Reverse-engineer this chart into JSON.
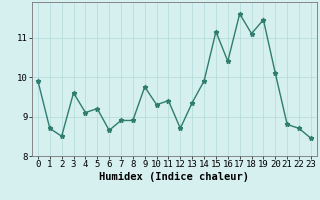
{
  "x": [
    0,
    1,
    2,
    3,
    4,
    5,
    6,
    7,
    8,
    9,
    10,
    11,
    12,
    13,
    14,
    15,
    16,
    17,
    18,
    19,
    20,
    21,
    22,
    23
  ],
  "y": [
    9.9,
    8.7,
    8.5,
    9.6,
    9.1,
    9.2,
    8.65,
    8.9,
    8.9,
    9.75,
    9.3,
    9.4,
    8.7,
    9.35,
    9.9,
    11.15,
    10.4,
    11.6,
    11.1,
    11.45,
    10.1,
    8.8,
    8.7,
    8.45
  ],
  "line_color": "#2e7d6e",
  "bg_color": "#d6efef",
  "grid_color": "#b8dcdc",
  "xlabel": "Humidex (Indice chaleur)",
  "ylim": [
    8.0,
    11.9
  ],
  "xlim": [
    -0.5,
    23.5
  ],
  "yticks": [
    8,
    9,
    10,
    11
  ],
  "xticks": [
    0,
    1,
    2,
    3,
    4,
    5,
    6,
    7,
    8,
    9,
    10,
    11,
    12,
    13,
    14,
    15,
    16,
    17,
    18,
    19,
    20,
    21,
    22,
    23
  ],
  "xlabel_fontsize": 7.5,
  "tick_fontsize": 6.5,
  "marker": "*",
  "marker_size": 3.5,
  "line_width": 1.0
}
